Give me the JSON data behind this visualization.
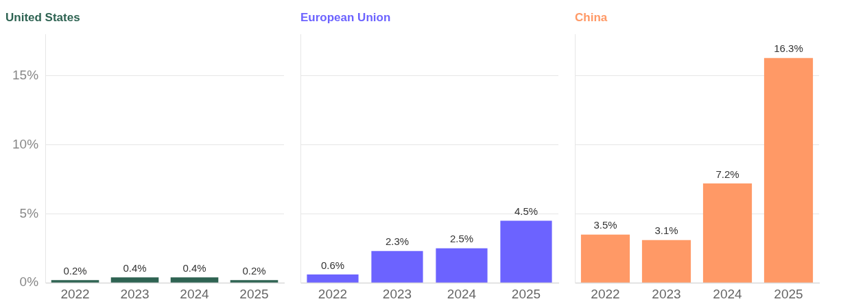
{
  "chart_data": [
    {
      "type": "bar",
      "title": "United States",
      "categories": [
        "2022",
        "2023",
        "2024",
        "2025"
      ],
      "series": [
        {
          "color": "#2e6352",
          "values": [
            0.2,
            0.4,
            0.4,
            0.2
          ],
          "value_labels": [
            "0.2%",
            "0.4%",
            "0.4%",
            "0.2%"
          ]
        }
      ],
      "ylim": [
        0,
        18
      ],
      "yticks": [
        {
          "value": 0,
          "label": "0%"
        },
        {
          "value": 5,
          "label": "5%"
        },
        {
          "value": 10,
          "label": "10%"
        },
        {
          "value": 15,
          "label": "15%"
        }
      ],
      "grid": "y"
    },
    {
      "type": "bar",
      "title": "European Union",
      "categories": [
        "2022",
        "2023",
        "2024",
        "2025"
      ],
      "series": [
        {
          "color": "#6c63ff",
          "values": [
            0.6,
            2.3,
            2.5,
            4.5
          ],
          "value_labels": [
            "0.6%",
            "2.3%",
            "2.5%",
            "4.5%"
          ]
        }
      ],
      "ylim": [
        0,
        18
      ],
      "yticks": [
        0,
        5,
        10,
        15
      ],
      "grid": "y",
      "tick_labels": "x"
    },
    {
      "type": "bar",
      "title": "China",
      "categories": [
        "2022",
        "2023",
        "2024",
        "2025"
      ],
      "series": [
        {
          "color": "#ff9966",
          "values": [
            3.5,
            3.1,
            7.2,
            16.3
          ],
          "value_labels": [
            "3.5%",
            "3.1%",
            "7.2%",
            "16.3%"
          ]
        }
      ],
      "ylim": [
        0,
        18
      ],
      "yticks": [
        0,
        5,
        10,
        15
      ],
      "grid": "y",
      "tick_labels": "x"
    }
  ]
}
